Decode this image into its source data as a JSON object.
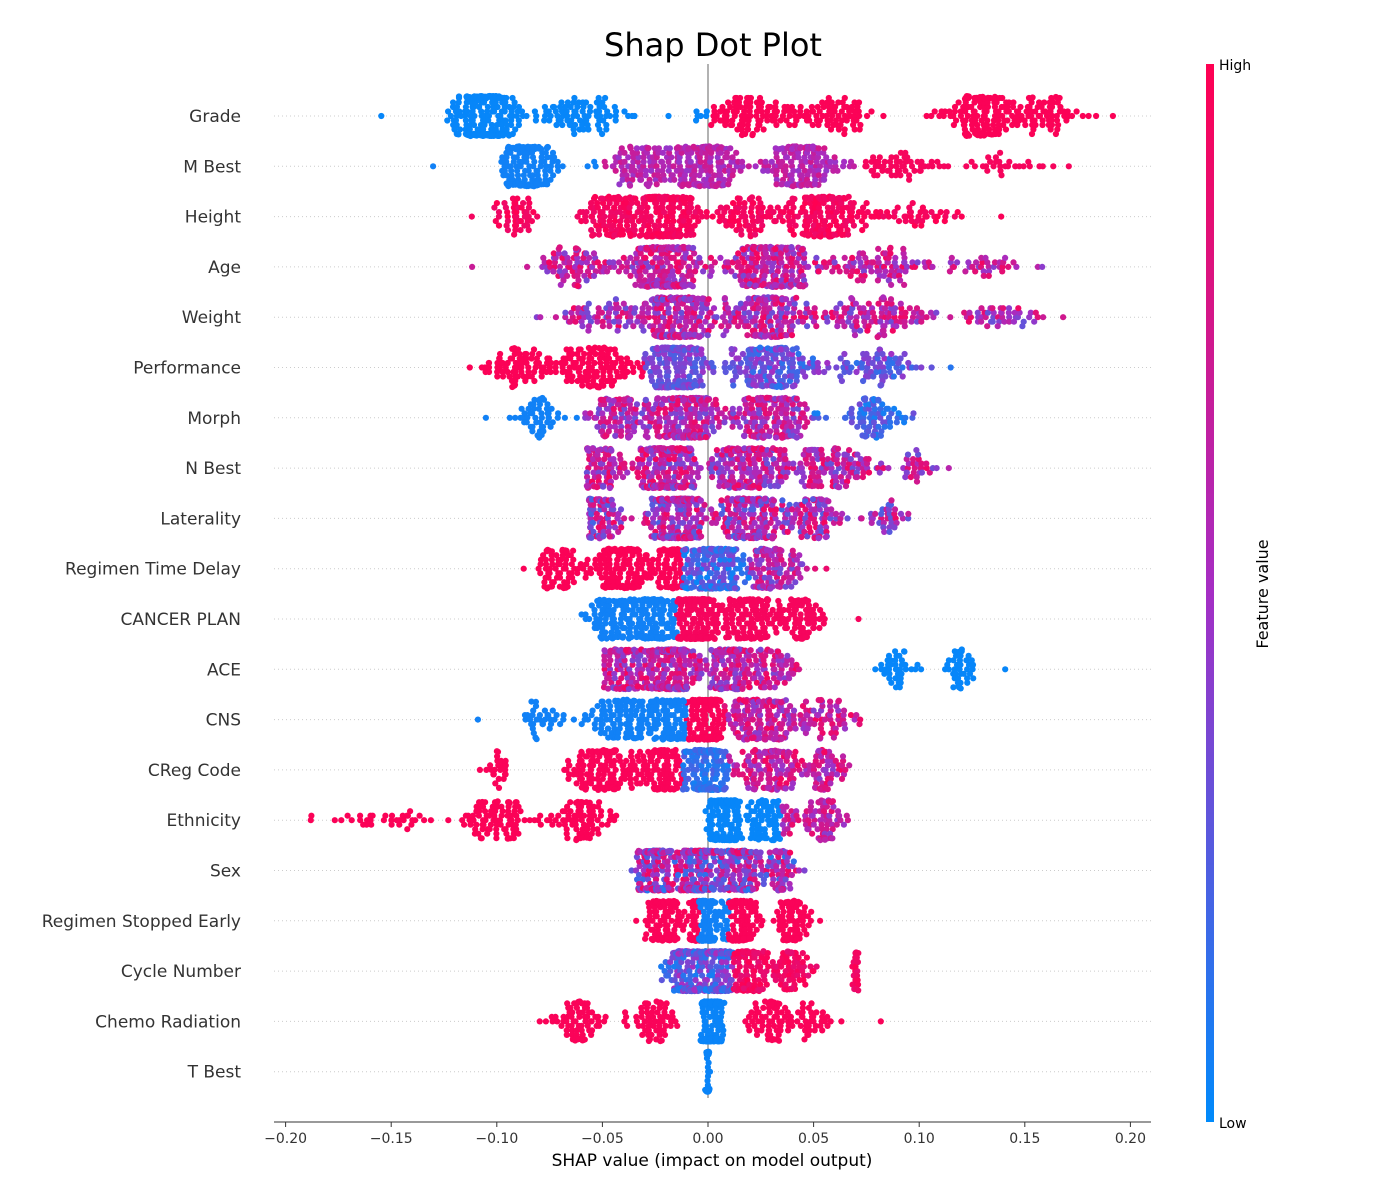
{
  "chart_data": {
    "type": "scatter",
    "subtype": "shap-beeswarm",
    "title": "Shap Dot Plot",
    "xlabel": "SHAP value (impact on model output)",
    "xlim": [
      -0.21,
      0.21
    ],
    "xticks": [
      -0.2,
      -0.15,
      -0.1,
      -0.05,
      0.0,
      0.05,
      0.1,
      0.15,
      0.2
    ],
    "xtick_labels": [
      "−0.20",
      "−0.15",
      "−0.10",
      "−0.05",
      "0.00",
      "0.05",
      "0.10",
      "0.15",
      "0.20"
    ],
    "features": [
      {
        "name": "Grade",
        "min": -0.155,
        "max": 0.192
      },
      {
        "name": "M Best",
        "min": -0.13,
        "max": 0.171
      },
      {
        "name": "Height",
        "min": -0.112,
        "max": 0.139
      },
      {
        "name": "Age",
        "min": -0.112,
        "max": 0.158
      },
      {
        "name": "Weight",
        "min": -0.081,
        "max": 0.168
      },
      {
        "name": "Performance",
        "min": -0.113,
        "max": 0.115
      },
      {
        "name": "Morph",
        "min": -0.105,
        "max": 0.097
      },
      {
        "name": "N Best",
        "min": -0.057,
        "max": 0.114
      },
      {
        "name": "Laterality",
        "min": -0.056,
        "max": 0.095
      },
      {
        "name": "Regimen Time Delay",
        "min": -0.087,
        "max": 0.056
      },
      {
        "name": "CANCER PLAN",
        "min": -0.06,
        "max": 0.071
      },
      {
        "name": "ACE",
        "min": -0.049,
        "max": 0.141
      },
      {
        "name": "CNS",
        "min": -0.109,
        "max": 0.072
      },
      {
        "name": "CReg Code",
        "min": -0.108,
        "max": 0.067
      },
      {
        "name": "Ethnicity",
        "min": -0.188,
        "max": 0.066
      },
      {
        "name": "Sex",
        "min": -0.036,
        "max": 0.046
      },
      {
        "name": "Regimen Stopped Early",
        "min": -0.034,
        "max": 0.053
      },
      {
        "name": "Cycle Number",
        "min": -0.022,
        "max": 0.071
      },
      {
        "name": "Chemo Radiation",
        "min": -0.08,
        "max": 0.082
      },
      {
        "name": "T Best",
        "min": -0.001,
        "max": 0.001
      }
    ],
    "colorbar": {
      "label": "Feature value",
      "high_label": "High",
      "low_label": "Low",
      "high_color": "#ff0052",
      "mid_color": "#a52ec4",
      "low_color": "#008afb"
    },
    "zero_line_color": "#999999",
    "grid": false
  }
}
